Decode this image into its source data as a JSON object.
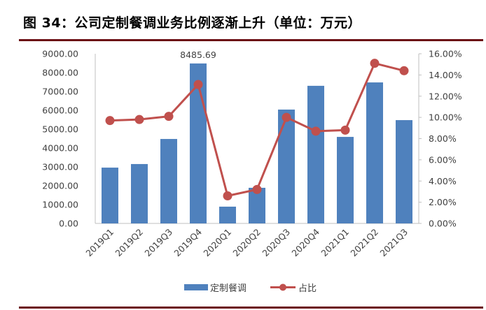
{
  "header": {
    "title": "图 34：公司定制餐调业务比例逐渐上升（单位：万元）"
  },
  "colors": {
    "bar": "#4f81bd",
    "line": "#c0504d",
    "rule": "#6b0e14",
    "axis": "#bfbfbf",
    "text": "#404040"
  },
  "chart_data": {
    "type": "bar+line",
    "title": "图 34：公司定制餐调业务比例逐渐上升（单位：万元）",
    "categories": [
      "2019Q1",
      "2019Q2",
      "2019Q3",
      "2019Q4",
      "2020Q1",
      "2020Q2",
      "2020Q3",
      "2020Q4",
      "2021Q1",
      "2021Q2",
      "2021Q3"
    ],
    "series": [
      {
        "name": "定制餐调",
        "type": "bar",
        "axis": "left",
        "values": [
          2960,
          3150,
          4480,
          8485.69,
          890,
          1890,
          6040,
          7300,
          4590,
          7480,
          5480
        ]
      },
      {
        "name": "占比",
        "type": "line",
        "axis": "right",
        "values": [
          9.7,
          9.8,
          10.1,
          13.1,
          2.6,
          3.2,
          10.0,
          8.7,
          8.8,
          15.1,
          14.4
        ],
        "unit": "%"
      }
    ],
    "annotations": [
      {
        "category": "2019Q4",
        "text": "8485.69"
      }
    ],
    "left_axis": {
      "ylim": [
        0,
        9000
      ],
      "ticks": [
        "0.00",
        "1000.00",
        "2000.00",
        "3000.00",
        "4000.00",
        "5000.00",
        "6000.00",
        "7000.00",
        "8000.00",
        "9000.00"
      ]
    },
    "right_axis": {
      "ylim": [
        0,
        16
      ],
      "ticks": [
        "0.00%",
        "2.00%",
        "4.00%",
        "6.00%",
        "8.00%",
        "10.00%",
        "12.00%",
        "14.00%",
        "16.00%"
      ]
    },
    "xlabel": "",
    "ylabel": "",
    "grid": false,
    "legend_position": "bottom"
  },
  "legend": {
    "bar_label": "定制餐调",
    "line_label": "占比"
  },
  "annotation_label": "8485.69"
}
